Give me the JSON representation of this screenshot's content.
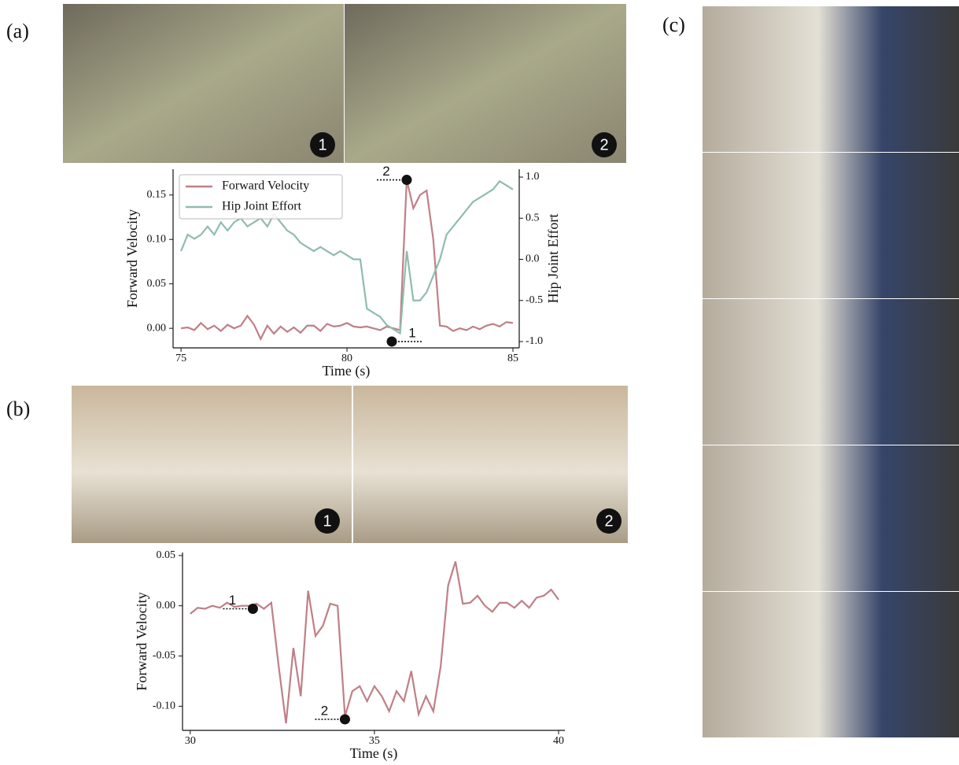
{
  "panels": [
    "(a)",
    "(b)",
    "(c)"
  ],
  "photo_badges": {
    "a": [
      "1",
      "2"
    ],
    "b": [
      "1",
      "2"
    ]
  },
  "chart_data": [
    {
      "type": "line",
      "x_label": "Time (s)",
      "y_label": "Forward Velocity",
      "y2_label": "Hip Joint Effort",
      "x": [
        75.0,
        75.2,
        75.4,
        75.6,
        75.8,
        76.0,
        76.2,
        76.4,
        76.6,
        76.8,
        77.0,
        77.2,
        77.4,
        77.6,
        77.8,
        78.0,
        78.2,
        78.4,
        78.6,
        78.8,
        79.0,
        79.2,
        79.4,
        79.6,
        79.8,
        80.0,
        80.2,
        80.4,
        80.6,
        80.8,
        81.0,
        81.2,
        81.4,
        81.6,
        81.8,
        82.0,
        82.2,
        82.4,
        82.6,
        82.8,
        83.0,
        83.2,
        83.4,
        83.6,
        83.8,
        84.0,
        84.2,
        84.4,
        84.6,
        84.8,
        85.0
      ],
      "series": [
        {
          "name": "Forward Velocity",
          "color": "#c07f86",
          "values": [
            0.0,
            0.001,
            -0.002,
            0.006,
            -0.001,
            0.003,
            -0.003,
            0.004,
            0.0,
            0.003,
            0.014,
            0.004,
            -0.012,
            0.003,
            -0.006,
            0.002,
            -0.004,
            0.001,
            -0.005,
            0.003,
            0.003,
            -0.003,
            0.005,
            0.002,
            0.003,
            0.006,
            0.002,
            0.001,
            0.002,
            0.0,
            -0.002,
            0.002,
            0.0,
            -0.002,
            0.167,
            0.135,
            0.15,
            0.155,
            0.1,
            0.003,
            0.002,
            -0.003,
            0.0,
            -0.002,
            0.002,
            -0.001,
            0.003,
            0.005,
            0.002,
            0.007,
            0.006
          ]
        },
        {
          "name": "Hip Joint Effort",
          "color": "#8fbcae",
          "axis": "y2",
          "values": [
            0.1,
            0.3,
            0.25,
            0.3,
            0.4,
            0.3,
            0.45,
            0.35,
            0.45,
            0.5,
            0.4,
            0.45,
            0.5,
            0.4,
            0.55,
            0.45,
            0.35,
            0.3,
            0.2,
            0.15,
            0.1,
            0.15,
            0.1,
            0.05,
            0.1,
            0.05,
            0.0,
            0.0,
            -0.6,
            -0.65,
            -0.7,
            -0.8,
            -0.85,
            -0.9,
            0.1,
            -0.5,
            -0.5,
            -0.4,
            -0.2,
            0.0,
            0.3,
            0.4,
            0.5,
            0.6,
            0.7,
            0.75,
            0.8,
            0.85,
            0.95,
            0.9,
            0.85
          ]
        }
      ],
      "xlim": [
        74.76,
        85.19
      ],
      "ylim": [
        -0.022,
        0.179
      ],
      "y2lim": [
        -1.077,
        1.096
      ],
      "xticks": [
        75,
        80,
        85
      ],
      "yticks": [
        {
          "value": 0,
          "label": "0.00"
        },
        {
          "value": 0.05,
          "label": "0.05"
        },
        {
          "value": 0.1,
          "label": "0.10"
        },
        {
          "value": 0.15,
          "label": "0.15"
        }
      ],
      "y2ticks": [
        {
          "value": -1,
          "label": "-1.0"
        },
        {
          "value": -0.5,
          "label": "-0.5"
        },
        {
          "value": 0,
          "label": "0.0"
        },
        {
          "value": 0.5,
          "label": "0.5"
        },
        {
          "value": 1,
          "label": "1.0"
        }
      ],
      "legend": "upper left",
      "annotations": [
        {
          "text": "1",
          "x": 81.35,
          "y": -1.0,
          "axis": "y2"
        },
        {
          "text": "2",
          "x": 81.8,
          "y": 0.167
        }
      ]
    },
    {
      "type": "line",
      "x_label": "Time (s)",
      "y_label": "Forward Velocity",
      "x": [
        30.0,
        30.2,
        30.4,
        30.6,
        30.8,
        31.0,
        31.2,
        31.4,
        31.6,
        31.8,
        32.0,
        32.2,
        32.4,
        32.6,
        32.8,
        33.0,
        33.2,
        33.4,
        33.6,
        33.8,
        34.0,
        34.2,
        34.4,
        34.6,
        34.8,
        35.0,
        35.2,
        35.4,
        35.6,
        35.8,
        36.0,
        36.2,
        36.4,
        36.6,
        36.8,
        37.0,
        37.2,
        37.4,
        37.6,
        37.8,
        38.0,
        38.2,
        38.4,
        38.6,
        38.8,
        39.0,
        39.2,
        39.4,
        39.6,
        39.8,
        40.0
      ],
      "series": [
        {
          "name": "Forward Velocity",
          "color": "#c07f86",
          "values": [
            -0.008,
            -0.002,
            -0.003,
            0.0,
            -0.002,
            0.003,
            -0.001,
            0.0,
            0.0,
            0.002,
            -0.003,
            0.003,
            -0.06,
            -0.117,
            -0.042,
            -0.09,
            0.015,
            -0.03,
            -0.02,
            0.002,
            0.0,
            -0.11,
            -0.085,
            -0.08,
            -0.095,
            -0.08,
            -0.09,
            -0.105,
            -0.085,
            -0.095,
            -0.065,
            -0.108,
            -0.09,
            -0.105,
            -0.06,
            0.02,
            0.044,
            0.002,
            0.003,
            0.01,
            0.0,
            -0.006,
            0.003,
            0.003,
            -0.002,
            0.005,
            -0.002,
            0.008,
            0.01,
            0.016,
            0.006
          ]
        }
      ],
      "xlim": [
        29.79,
        40.17
      ],
      "ylim": [
        -0.124,
        0.053
      ],
      "xticks": [
        30,
        35,
        40
      ],
      "yticks": [
        {
          "value": -0.1,
          "label": "-0.10"
        },
        {
          "value": -0.05,
          "label": "-0.05"
        },
        {
          "value": 0,
          "label": "0.00"
        },
        {
          "value": 0.05,
          "label": "0.05"
        }
      ],
      "annotations": [
        {
          "text": "1",
          "x": 31.7,
          "y": -0.003
        },
        {
          "text": "2",
          "x": 34.2,
          "y": -0.113
        }
      ]
    }
  ]
}
